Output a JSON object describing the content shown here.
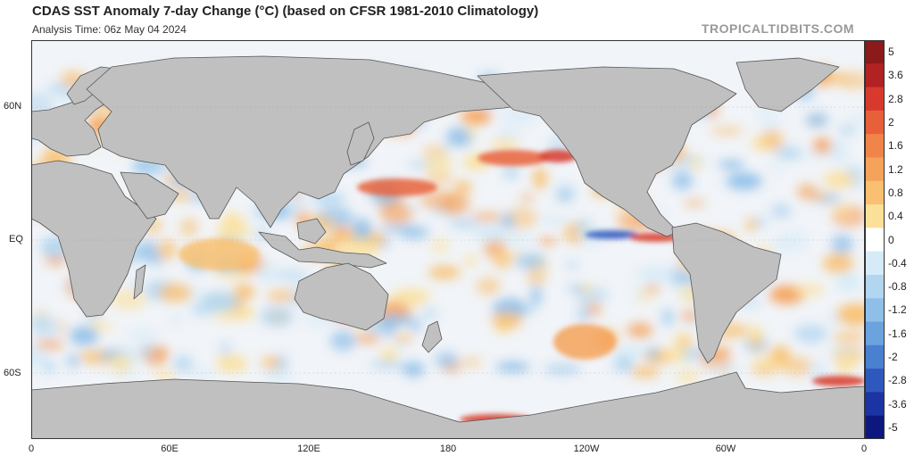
{
  "header": {
    "title": "CDAS SST Anomaly 7-day Change (°C) (based on CFSR 1981-2010 Climatology)",
    "analysis_time": "Analysis Time: 06z May 04 2024",
    "credit": "TROPICALTIDBITS.COM"
  },
  "axes": {
    "lat_labels": [
      "60N",
      "EQ",
      "60S"
    ],
    "lon_labels": [
      "0",
      "60E",
      "120E",
      "180",
      "120W",
      "60W",
      "0"
    ]
  },
  "colorbar": {
    "labels": [
      "5",
      "3.6",
      "2.8",
      "2",
      "1.6",
      "1.2",
      "0.8",
      "0.4",
      "0",
      "-0.4",
      "-0.8",
      "-1.2",
      "-1.6",
      "-2",
      "-2.8",
      "-3.6",
      "-5"
    ],
    "colors": [
      "#8b1a1a",
      "#b22222",
      "#d73a2c",
      "#e8603a",
      "#f0844a",
      "#f5a25a",
      "#f8c070",
      "#fbe09a",
      "#ffffff",
      "#d6ebf7",
      "#b3d6f0",
      "#8fbfe8",
      "#6aa3dd",
      "#4a80d0",
      "#2f58bd",
      "#1c34a3",
      "#0c1880"
    ]
  },
  "map": {
    "land_color": "#c0c0c0",
    "ocean_neutral": "#f2f4f7"
  }
}
